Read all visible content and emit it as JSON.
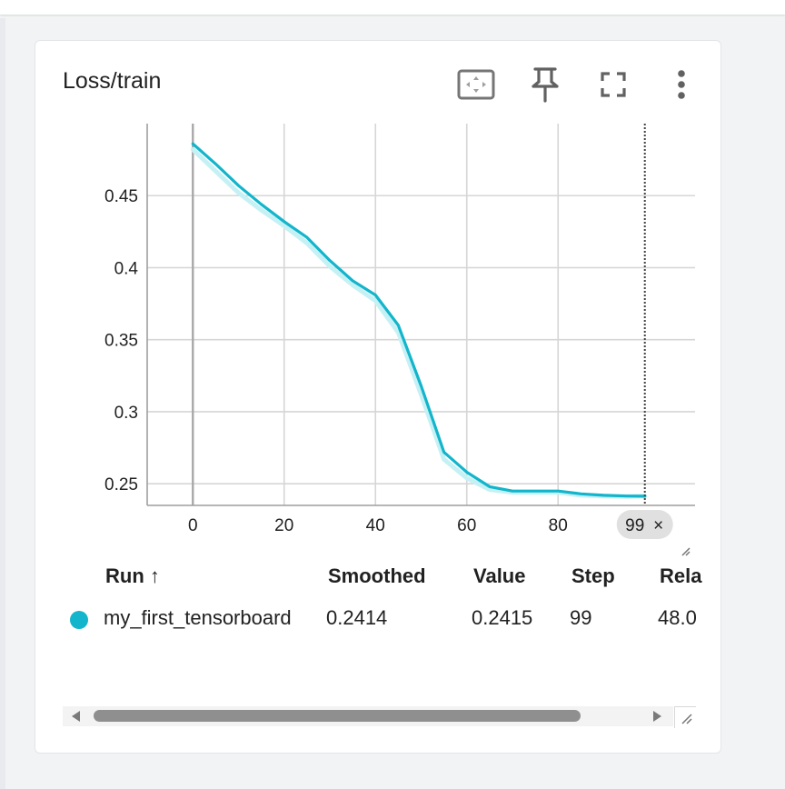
{
  "card": {
    "title": "Loss/train"
  },
  "toolbar": {
    "fit_icon": "fit-domain-icon",
    "pin_icon": "pin-icon",
    "fullscreen_icon": "fullscreen-icon",
    "more_icon": "more-vert-icon"
  },
  "colors": {
    "series": "#12b5cb",
    "series_raw": "#c5f1f5",
    "grid": "#d6d6d6",
    "axis": "#9e9e9e"
  },
  "chart_data": {
    "type": "line",
    "title": "",
    "xlabel": "",
    "ylabel": "",
    "xlim": [
      -10,
      110
    ],
    "ylim": [
      0.235,
      0.5
    ],
    "x_ticks": [
      0,
      20,
      40,
      60,
      80
    ],
    "y_ticks": [
      0.25,
      0.3,
      0.35,
      0.4,
      0.45
    ],
    "y_tick_labels": [
      "0.25",
      "0.3",
      "0.35",
      "0.4",
      "0.45"
    ],
    "x_tick_labels": [
      "0",
      "20",
      "40",
      "60",
      "80"
    ],
    "grid": true,
    "cursor": {
      "step": 99,
      "label": "99",
      "close": "×"
    },
    "series": [
      {
        "name": "my_first_tensorboard",
        "x": [
          0,
          5,
          10,
          15,
          20,
          25,
          30,
          35,
          40,
          45,
          50,
          55,
          60,
          65,
          70,
          75,
          80,
          85,
          90,
          95,
          99
        ],
        "smoothed": [
          0.486,
          0.472,
          0.457,
          0.444,
          0.432,
          0.421,
          0.405,
          0.391,
          0.381,
          0.36,
          0.318,
          0.272,
          0.258,
          0.248,
          0.245,
          0.245,
          0.245,
          0.243,
          0.242,
          0.2415,
          0.2414
        ],
        "raw": [
          0.482,
          0.467,
          0.452,
          0.44,
          0.429,
          0.417,
          0.401,
          0.388,
          0.377,
          0.355,
          0.312,
          0.267,
          0.254,
          0.246,
          0.244,
          0.244,
          0.244,
          0.242,
          0.2415,
          0.2412,
          0.2415
        ]
      }
    ]
  },
  "table": {
    "headers": {
      "run": "Run",
      "sort_arrow": "↑",
      "smoothed": "Smoothed",
      "value": "Value",
      "step": "Step",
      "relative": "Rela"
    },
    "rows": [
      {
        "run": "my_first_tensorboard",
        "smoothed": "0.2414",
        "value": "0.2415",
        "step": "99",
        "relative": "48.0"
      }
    ]
  }
}
